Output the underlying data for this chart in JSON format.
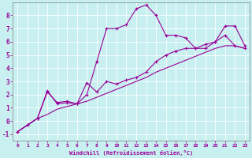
{
  "title": "",
  "xlabel": "Windchill (Refroidissement éolien,°C)",
  "bg_color": "#c8f0f0",
  "line_color": "#990099",
  "grid_color": "#ffffff",
  "xlim": [
    -0.5,
    23.5
  ],
  "ylim": [
    -1.5,
    9.0
  ],
  "xticks": [
    0,
    1,
    2,
    3,
    4,
    5,
    6,
    7,
    8,
    9,
    10,
    11,
    12,
    13,
    14,
    15,
    16,
    17,
    18,
    19,
    20,
    21,
    22,
    23
  ],
  "yticks": [
    -1,
    0,
    1,
    2,
    3,
    4,
    5,
    6,
    7,
    8
  ],
  "line1_x": [
    0,
    1,
    2,
    3,
    4,
    5,
    6,
    7,
    8,
    9,
    10,
    11,
    12,
    13,
    14,
    15,
    16,
    17,
    18,
    19,
    20,
    21,
    22,
    23
  ],
  "line1_y": [
    -0.8,
    -0.3,
    0.2,
    2.2,
    1.4,
    1.5,
    1.3,
    2.0,
    4.5,
    7.0,
    7.0,
    7.3,
    8.5,
    8.8,
    8.0,
    6.5,
    6.5,
    6.3,
    5.5,
    5.5,
    6.0,
    7.2,
    7.2,
    5.7
  ],
  "line2_x": [
    0,
    1,
    2,
    3,
    4,
    5,
    6,
    7,
    8,
    9,
    10,
    11,
    12,
    13,
    14,
    15,
    16,
    17,
    18,
    19,
    20,
    21,
    22,
    23
  ],
  "line2_y": [
    -0.8,
    -0.3,
    0.2,
    2.3,
    1.3,
    1.4,
    1.3,
    2.9,
    2.2,
    3.0,
    2.8,
    3.1,
    3.3,
    3.7,
    4.5,
    5.0,
    5.3,
    5.5,
    5.5,
    5.8,
    6.0,
    6.5,
    5.7,
    5.5
  ],
  "line3_x": [
    0,
    1,
    2,
    3,
    4,
    5,
    6,
    7,
    8,
    9,
    10,
    11,
    12,
    13,
    14,
    15,
    16,
    17,
    18,
    19,
    20,
    21,
    22,
    23
  ],
  "line3_y": [
    -0.8,
    -0.3,
    0.2,
    0.5,
    0.9,
    1.1,
    1.3,
    1.5,
    1.8,
    2.1,
    2.4,
    2.7,
    3.0,
    3.3,
    3.7,
    4.0,
    4.3,
    4.6,
    4.9,
    5.2,
    5.5,
    5.7,
    5.7,
    5.5
  ]
}
